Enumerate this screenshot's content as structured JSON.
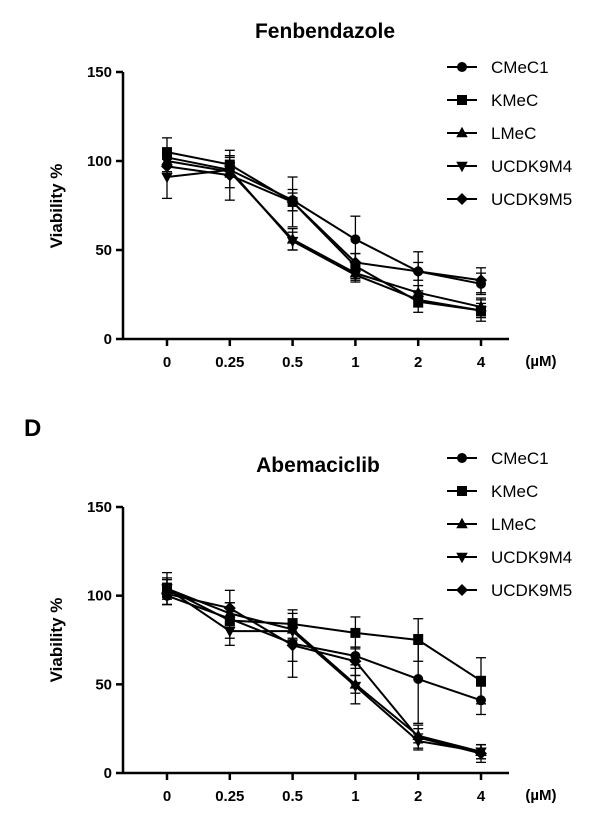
{
  "panel_label": "D",
  "chart_data": [
    {
      "type": "line",
      "title": "Fenbendazole",
      "xlabel": "(µM)",
      "ylabel": "Viability %",
      "categories": [
        "0",
        "0.25",
        "0.5",
        "1",
        "2",
        "4"
      ],
      "ylim": [
        0,
        150
      ],
      "yticks": [
        "0",
        "50",
        "100",
        "150"
      ],
      "legend_position": "top-right",
      "series": [
        {
          "name": "CMeC1",
          "marker": "circle",
          "values": [
            102,
            95,
            78,
            56,
            38,
            31
          ],
          "errors": [
            5,
            4,
            6,
            13,
            11,
            6
          ]
        },
        {
          "name": "KMeC",
          "marker": "square",
          "values": [
            105,
            98,
            77,
            41,
            21,
            16
          ],
          "errors": [
            8,
            4,
            5,
            7,
            6,
            6
          ]
        },
        {
          "name": "LMeC",
          "marker": "triangle-up",
          "values": [
            100,
            94,
            56,
            37,
            26,
            18
          ],
          "errors": [
            6,
            9,
            6,
            4,
            4,
            5
          ]
        },
        {
          "name": "UCDK9M4",
          "marker": "triangle-down",
          "values": [
            91,
            95,
            55,
            36,
            22,
            16
          ],
          "errors": [
            12,
            4,
            5,
            4,
            4,
            4
          ]
        },
        {
          "name": "UCDK9M5",
          "marker": "diamond",
          "values": [
            97,
            92,
            77,
            43,
            38,
            33
          ],
          "errors": [
            4,
            14,
            14,
            5,
            5,
            7
          ]
        }
      ]
    },
    {
      "type": "line",
      "title": "Abemaciclib",
      "xlabel": "(µM)",
      "ylabel": "Viability %",
      "categories": [
        "0",
        "0.25",
        "0.5",
        "1",
        "2",
        "4"
      ],
      "ylim": [
        0,
        150
      ],
      "yticks": [
        "0",
        "50",
        "100",
        "150"
      ],
      "legend_position": "top-right",
      "series": [
        {
          "name": "CMeC1",
          "marker": "circle",
          "values": [
            100,
            87,
            73,
            66,
            53,
            41
          ],
          "errors": [
            5,
            4,
            10,
            5,
            25,
            8
          ]
        },
        {
          "name": "KMeC",
          "marker": "square",
          "values": [
            104,
            86,
            84,
            79,
            75,
            52
          ],
          "errors": [
            9,
            10,
            8,
            9,
            12,
            13
          ]
        },
        {
          "name": "LMeC",
          "marker": "triangle-up",
          "values": [
            104,
            90,
            81,
            50,
            21,
            12
          ],
          "errors": [
            6,
            6,
            6,
            5,
            4,
            4
          ]
        },
        {
          "name": "UCDK9M4",
          "marker": "triangle-down",
          "values": [
            104,
            80,
            80,
            49,
            18,
            12
          ],
          "errors": [
            5,
            8,
            5,
            10,
            4,
            4
          ]
        },
        {
          "name": "UCDK9M5",
          "marker": "diamond",
          "values": [
            101,
            93,
            72,
            63,
            20,
            11
          ],
          "errors": [
            6,
            10,
            18,
            8,
            7,
            5
          ]
        }
      ]
    }
  ]
}
